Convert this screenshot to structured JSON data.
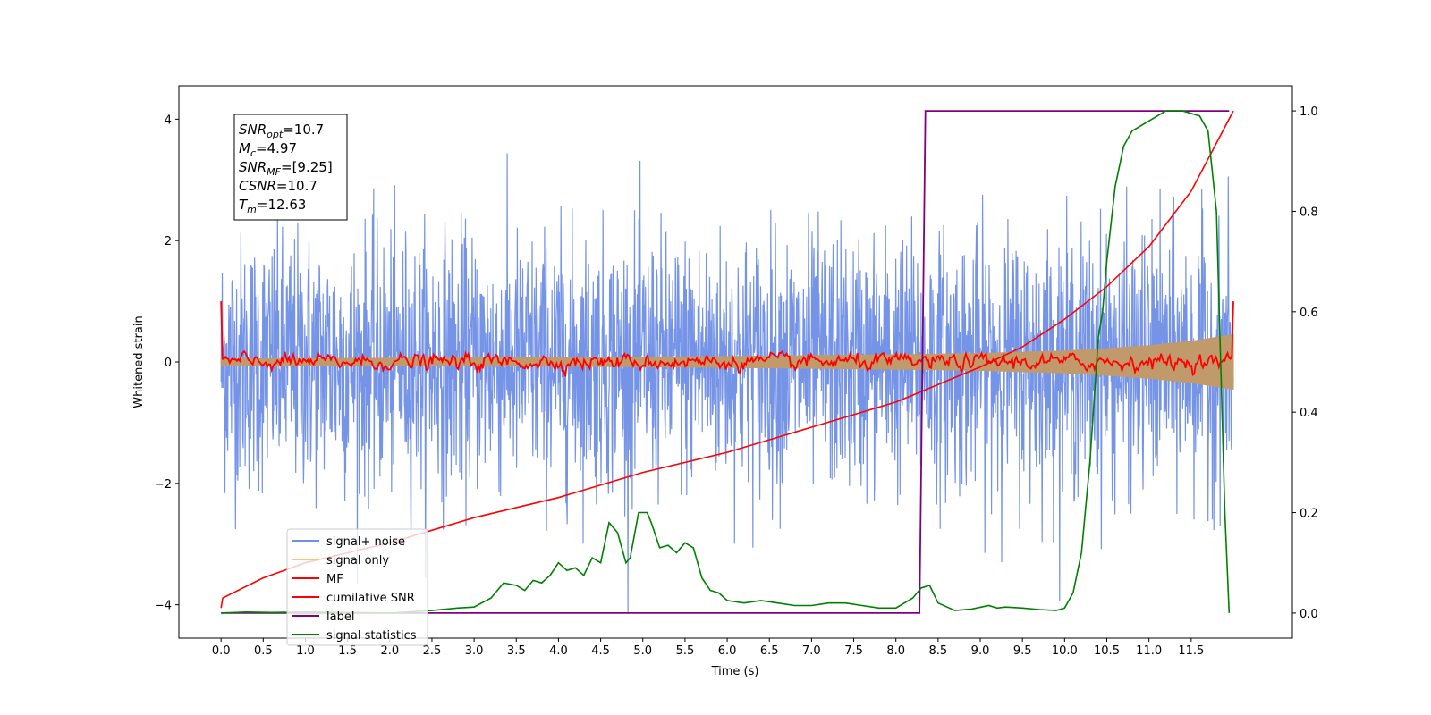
{
  "chart_data": {
    "type": "line",
    "title": "",
    "xlabel": "Time (s)",
    "ylabel": "Whitened strain",
    "xlim": [
      -0.5,
      12.7
    ],
    "ylim": [
      -4.55,
      4.55
    ],
    "y2lim": [
      -0.05,
      1.05
    ],
    "grid": false,
    "legend_position": "lower-left",
    "x_ticks": [
      0.0,
      0.5,
      1.0,
      1.5,
      2.0,
      2.5,
      3.0,
      3.5,
      4.0,
      4.5,
      5.0,
      5.5,
      6.0,
      6.5,
      7.0,
      7.5,
      8.0,
      8.5,
      9.0,
      9.5,
      10.0,
      10.5,
      11.0,
      11.5
    ],
    "x_tick_labels": [
      "0.0",
      "0.5",
      "1.0",
      "1.5",
      "2.0",
      "2.5",
      "3.0",
      "3.5",
      "4.0",
      "4.5",
      "5.0",
      "5.5",
      "6.0",
      "6.5",
      "7.0",
      "7.5",
      "8.0",
      "8.5",
      "9.0",
      "9.5",
      "10.0",
      "10.5",
      "11.0",
      "11.5"
    ],
    "y_ticks": [
      -4,
      -2,
      0,
      2,
      4
    ],
    "y_tick_labels": [
      "−4",
      "−2",
      "0",
      "2",
      "4"
    ],
    "y2_ticks": [
      0.0,
      0.2,
      0.4,
      0.6,
      0.8,
      1.0
    ],
    "y2_tick_labels": [
      "0.0",
      "0.2",
      "0.4",
      "0.6",
      "0.8",
      "1.0"
    ],
    "stats_box": [
      {
        "base": "SNR",
        "sub": "opt",
        "rest": "=10.7"
      },
      {
        "base": "M",
        "sub": "c",
        "rest": "=4.97"
      },
      {
        "base": "SNR",
        "sub": "MF",
        "rest": "=[9.25]"
      },
      {
        "base": "CSNR",
        "sub": "",
        "rest": "=10.7"
      },
      {
        "base": "T",
        "sub": "m",
        "rest": "=12.63"
      }
    ],
    "series": [
      {
        "name": "signal+ noise",
        "axis": "left",
        "color": "#6f8ee6",
        "kind": "noise",
        "x_range": [
          0.0,
          12.0
        ],
        "envelope_upper": 2.3,
        "envelope_lower": -2.3,
        "peak_max": 4.15,
        "peak_min": -4.15
      },
      {
        "name": "signal only",
        "axis": "left",
        "color": "#ffc07a",
        "kind": "chirp-envelope",
        "x": [
          0.0,
          2.0,
          4.0,
          6.0,
          8.0,
          9.0,
          10.0,
          10.5,
          11.0,
          11.5,
          12.0
        ],
        "y_upper": [
          0.05,
          0.06,
          0.07,
          0.09,
          0.12,
          0.14,
          0.18,
          0.22,
          0.27,
          0.34,
          0.45
        ],
        "y_lower": [
          -0.05,
          -0.06,
          -0.07,
          -0.09,
          -0.12,
          -0.14,
          -0.18,
          -0.22,
          -0.27,
          -0.34,
          -0.45
        ]
      },
      {
        "name": "MF",
        "axis": "left",
        "color": "#ff0000",
        "kind": "jitter",
        "x_range": [
          0.0,
          12.0
        ],
        "start_value": 1.0,
        "amplitude": 0.12,
        "end_value": 1.0
      },
      {
        "name": "cumilative SNR",
        "axis": "right",
        "color": "#ff0000",
        "x": [
          0.0,
          0.02,
          0.5,
          1.0,
          2.0,
          3.0,
          4.0,
          5.0,
          6.0,
          7.0,
          8.0,
          8.5,
          9.0,
          9.5,
          10.0,
          10.5,
          11.0,
          11.5,
          12.0
        ],
        "y": [
          0.01,
          0.03,
          0.07,
          0.1,
          0.14,
          0.19,
          0.23,
          0.28,
          0.32,
          0.37,
          0.42,
          0.455,
          0.49,
          0.53,
          0.585,
          0.65,
          0.73,
          0.84,
          1.0
        ]
      },
      {
        "name": "label",
        "axis": "right",
        "color": "#800080",
        "x": [
          0.0,
          8.28,
          8.35,
          11.95
        ],
        "y": [
          0.0,
          0.0,
          1.0,
          1.0
        ]
      },
      {
        "name": "signal statistics",
        "axis": "right",
        "color": "#008000",
        "x": [
          0.0,
          0.3,
          0.6,
          1.0,
          1.5,
          2.0,
          2.5,
          2.8,
          3.0,
          3.2,
          3.35,
          3.5,
          3.6,
          3.7,
          3.8,
          3.9,
          4.0,
          4.1,
          4.2,
          4.3,
          4.4,
          4.5,
          4.6,
          4.7,
          4.8,
          4.85,
          4.95,
          5.05,
          5.1,
          5.2,
          5.3,
          5.4,
          5.5,
          5.6,
          5.7,
          5.8,
          5.9,
          6.0,
          6.2,
          6.4,
          6.6,
          6.8,
          7.0,
          7.2,
          7.4,
          7.6,
          7.8,
          8.0,
          8.2,
          8.3,
          8.4,
          8.5,
          8.7,
          8.9,
          9.1,
          9.2,
          9.3,
          9.5,
          9.7,
          9.9,
          10.0,
          10.1,
          10.2,
          10.3,
          10.4,
          10.45,
          10.5,
          10.6,
          10.7,
          10.8,
          10.9,
          11.0,
          11.1,
          11.2,
          11.3,
          11.4,
          11.6,
          11.7,
          11.8,
          11.9,
          11.95
        ],
        "y": [
          0.0,
          0.002,
          0.001,
          0.002,
          0.001,
          0.0,
          0.005,
          0.01,
          0.012,
          0.03,
          0.06,
          0.055,
          0.045,
          0.065,
          0.06,
          0.075,
          0.1,
          0.085,
          0.09,
          0.075,
          0.11,
          0.1,
          0.18,
          0.16,
          0.1,
          0.11,
          0.2,
          0.2,
          0.18,
          0.13,
          0.135,
          0.12,
          0.14,
          0.13,
          0.07,
          0.045,
          0.04,
          0.025,
          0.02,
          0.025,
          0.02,
          0.015,
          0.015,
          0.02,
          0.02,
          0.015,
          0.01,
          0.01,
          0.03,
          0.05,
          0.055,
          0.02,
          0.005,
          0.008,
          0.015,
          0.01,
          0.012,
          0.01,
          0.007,
          0.005,
          0.01,
          0.04,
          0.12,
          0.3,
          0.55,
          0.6,
          0.7,
          0.85,
          0.93,
          0.96,
          0.97,
          0.98,
          0.99,
          1.0,
          1.0,
          1.0,
          0.99,
          0.96,
          0.8,
          0.2,
          0.0
        ]
      }
    ]
  }
}
